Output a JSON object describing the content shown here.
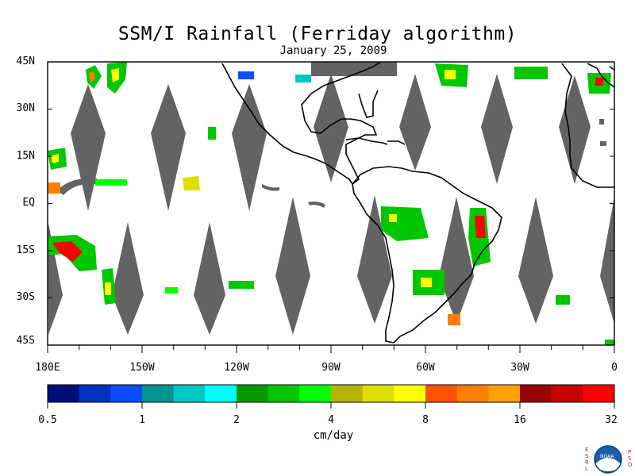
{
  "title": "SSM/I Rainfall (Ferriday algorithm)",
  "subtitle": "January 25, 2009",
  "lat_labels": [
    "45N",
    "30N",
    "15N",
    "EQ",
    "15S",
    "30S",
    "45S"
  ],
  "lon_labels": [
    "180E",
    "150W",
    "120W",
    "90W",
    "60W",
    "30W",
    "0"
  ],
  "colorbar": {
    "units": "cm/day",
    "tick_labels": [
      "0.5",
      "1",
      "2",
      "4",
      "8",
      "16",
      "32"
    ],
    "colors": [
      "#000e7a",
      "#0033c2",
      "#0b4dff",
      "#009494",
      "#00c7c7",
      "#00ffff",
      "#009900",
      "#00c700",
      "#00ff00",
      "#b5b500",
      "#dede00",
      "#ffff00",
      "#ff5300",
      "#ff7e00",
      "#ffa100",
      "#9a0000",
      "#c70000",
      "#ff0000"
    ]
  },
  "colors": {
    "no_data": "#636363",
    "coastline": "#000000"
  },
  "logo": {
    "left_letters": "ESRL",
    "right_letters": "PSD",
    "center_text": "NOAA"
  }
}
